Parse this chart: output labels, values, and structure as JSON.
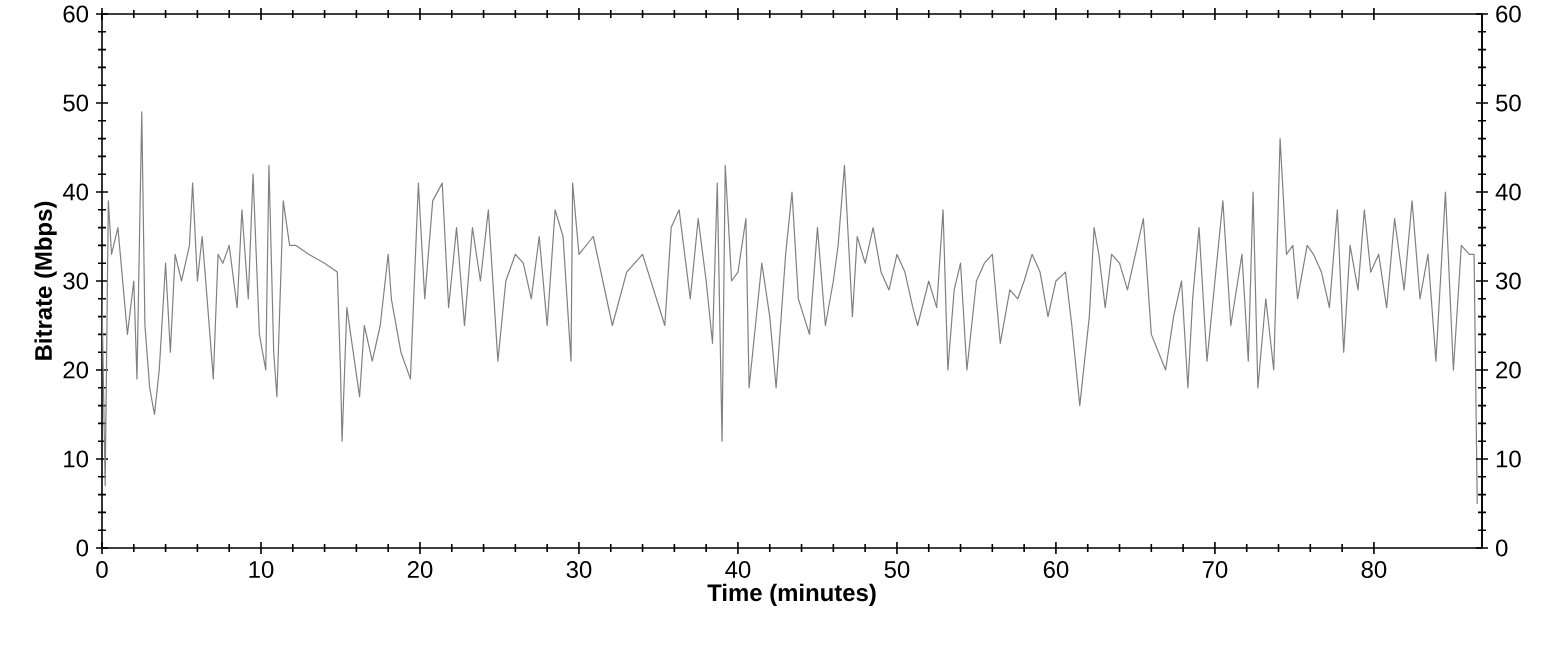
{
  "chart_data": {
    "type": "line",
    "xlabel": "Time (minutes)",
    "ylabel": "Bitrate (Mbps)",
    "x": [
      0,
      0.2,
      0.4,
      0.6,
      1.0,
      1.3,
      1.6,
      2.0,
      2.2,
      2.5,
      2.7,
      3.0,
      3.3,
      3.6,
      4.0,
      4.3,
      4.6,
      5.0,
      5.5,
      5.7,
      6.0,
      6.3,
      6.7,
      7.0,
      7.3,
      7.6,
      8.0,
      8.5,
      8.8,
      9.2,
      9.5,
      9.9,
      10.3,
      10.5,
      10.8,
      11.0,
      11.4,
      11.8,
      12.2,
      13,
      14,
      14.8,
      15.0,
      15.1,
      15.4,
      16.2,
      16.5,
      17,
      17.5,
      18,
      18.2,
      18.8,
      19.4,
      19.9,
      20.3,
      20.8,
      21.4,
      21.8,
      22.3,
      22.8,
      23.3,
      23.8,
      24.3,
      24.9,
      25.4,
      26,
      26.5,
      27,
      27.5,
      28,
      28.5,
      29.0,
      29.5,
      29.6,
      30,
      30.9,
      32.1,
      33,
      34,
      35.4,
      35.8,
      36.3,
      37,
      37.5,
      38,
      38.4,
      38.7,
      39,
      39.2,
      39.6,
      40,
      40.5,
      40.7,
      41.5,
      42,
      42.4,
      43,
      43.4,
      43.8,
      44.5,
      45,
      45.5,
      46,
      46.3,
      46.7,
      47.2,
      47.5,
      48,
      48.5,
      49,
      49.5,
      50,
      50.5,
      51,
      51.3,
      52,
      52.5,
      52.9,
      53.2,
      53.6,
      54.0,
      54.4,
      55,
      55.5,
      56,
      56.5,
      57.1,
      57.6,
      58,
      58.5,
      59,
      59.5,
      60,
      60.6,
      61,
      61.5,
      62.1,
      62.4,
      62.7,
      63.1,
      63.5,
      64,
      64.5,
      65.5,
      66,
      66.9,
      67.4,
      67.9,
      68.3,
      68.6,
      69,
      69.5,
      70,
      70.5,
      71,
      71.7,
      72.1,
      72.4,
      72.7,
      73.2,
      73.7,
      74.1,
      74.5,
      74.9,
      75.2,
      75.8,
      76.2,
      76.7,
      77.2,
      77.7,
      78.1,
      78.5,
      79,
      79.4,
      79.8,
      80.3,
      80.8,
      81.3,
      81.9,
      82.4,
      82.9,
      83.4,
      83.9,
      84.5,
      85,
      85.5,
      86,
      86.3,
      86.5
    ],
    "values": [
      28,
      7,
      39,
      33,
      36,
      30,
      24,
      30,
      19,
      49,
      25,
      18,
      15,
      20,
      32,
      22,
      33,
      30,
      34,
      41,
      30,
      35,
      26,
      19,
      33,
      32,
      34,
      27,
      38,
      28,
      42,
      24,
      20,
      43,
      22,
      17,
      39,
      34,
      34,
      33,
      32,
      31,
      20,
      12,
      27,
      17,
      25,
      21,
      25,
      33,
      28,
      22,
      19,
      41,
      28,
      39,
      41,
      27,
      36,
      25,
      36,
      30,
      38,
      21,
      30,
      33,
      32,
      28,
      35,
      25,
      38,
      35,
      21,
      41,
      33,
      35,
      25,
      31,
      33,
      25,
      36,
      38,
      28,
      37,
      30,
      23,
      41,
      12,
      43,
      30,
      31,
      37,
      18,
      32,
      26,
      18,
      33,
      40,
      28,
      24,
      36,
      25,
      30,
      34,
      43,
      26,
      35,
      32,
      36,
      31,
      29,
      33,
      31,
      27,
      25,
      30,
      27,
      38,
      20,
      29,
      32,
      20,
      30,
      32,
      33,
      23,
      29,
      28,
      30,
      33,
      31,
      26,
      30,
      31,
      25,
      16,
      26,
      36,
      33,
      27,
      33,
      32,
      29,
      37,
      24,
      20,
      26,
      30,
      18,
      28,
      36,
      21,
      30,
      39,
      25,
      33,
      21,
      40,
      18,
      28,
      20,
      46,
      33,
      34,
      28,
      34,
      33,
      31,
      27,
      38,
      22,
      34,
      29,
      38,
      31,
      33,
      27,
      37,
      29,
      39,
      28,
      33,
      21,
      40,
      20,
      34,
      33,
      33,
      5
    ],
    "color": "#808080",
    "line_style": "solid",
    "xlim": [
      0,
      86.8
    ],
    "ylim": [
      0,
      60
    ],
    "xticks": [
      0,
      10,
      20,
      30,
      40,
      50,
      60,
      70,
      80
    ],
    "yticks": [
      0,
      10,
      20,
      30,
      40,
      50,
      60
    ],
    "y2lim": [
      0,
      60
    ],
    "y2ticks": [
      0,
      10,
      20,
      30,
      40,
      50,
      60
    ]
  }
}
